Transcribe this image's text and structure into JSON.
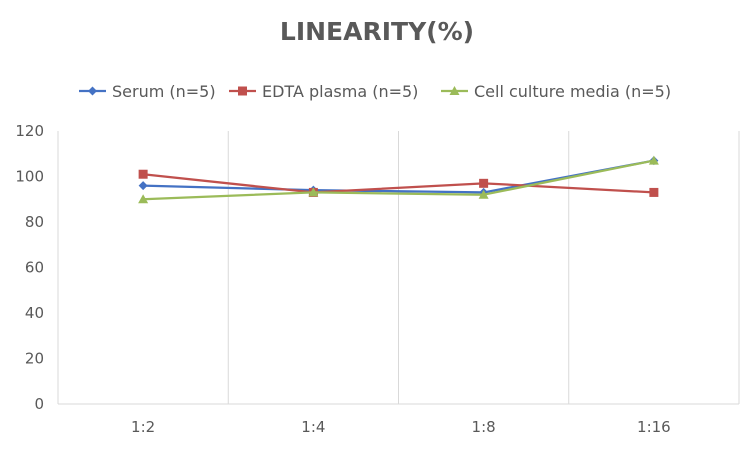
{
  "chart_data": {
    "type": "line",
    "title": "LINEARITY(%)",
    "xlabel": "",
    "ylabel": "",
    "categories": [
      "1:2",
      "1:4",
      "1:8",
      "1:16"
    ],
    "ylim": [
      0,
      120
    ],
    "yticks": [
      0,
      20,
      40,
      60,
      80,
      100,
      120
    ],
    "grid": "vertical category separators",
    "legend": "top",
    "series": [
      {
        "name": "Serum (n=5)",
        "color": "#4472c4",
        "marker": "diamond",
        "values": [
          96,
          94,
          93,
          107
        ]
      },
      {
        "name": "EDTA plasma (n=5)",
        "color": "#c0504d",
        "marker": "square",
        "values": [
          101,
          93,
          97,
          93
        ]
      },
      {
        "name": "Cell culture media (n=5)",
        "color": "#9bbb59",
        "marker": "triangle",
        "values": [
          90,
          93,
          92,
          107
        ]
      }
    ]
  }
}
